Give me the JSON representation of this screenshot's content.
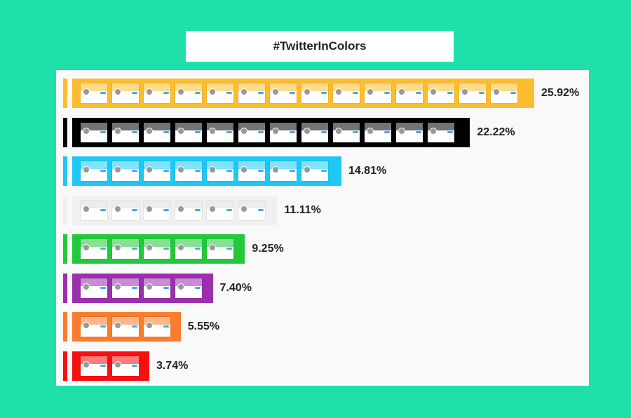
{
  "title": "#TwitterInColors",
  "chart_data": {
    "type": "bar",
    "orientation": "horizontal",
    "title": "#TwitterInColors",
    "categories": [
      "yellow",
      "black",
      "blue",
      "white",
      "green",
      "purple",
      "orange",
      "red"
    ],
    "values": [
      25.92,
      22.22,
      14.81,
      11.11,
      9.25,
      7.4,
      5.55,
      3.74
    ],
    "labels": [
      "25.92%",
      "22.22%",
      "14.81%",
      "11.11%",
      "9.25%",
      "7.40%",
      "5.55%",
      "3.74%"
    ],
    "colors": [
      "#fbbd2e",
      "#000000",
      "#1ec8f5",
      "#f0f0f0",
      "#22c93a",
      "#9b2fae",
      "#fb7c2c",
      "#f90f0f"
    ],
    "profile_thumbnail_counts": [
      14,
      12,
      8,
      6,
      5,
      4,
      3,
      2
    ]
  }
}
